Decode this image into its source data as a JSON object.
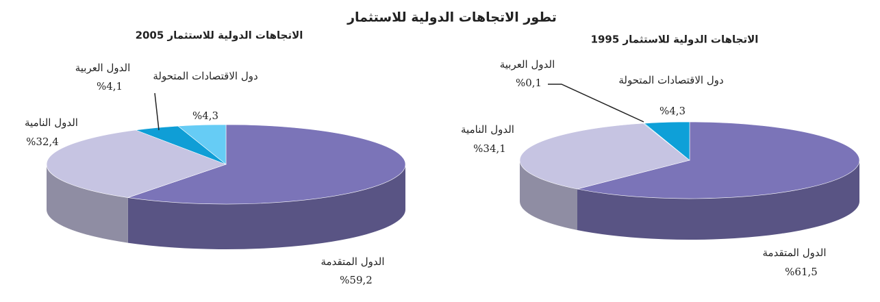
{
  "title": "تطور الاتجاهات الدولية للاستثمار",
  "chart_data": [
    {
      "type": "pie",
      "title": "الاتجاهات الدولية للاستثمار 2005",
      "categories": [
        "الدول المتقدمة",
        "الدول النامية",
        "الدول العربية",
        "دول الاقتصادات المتحولة"
      ],
      "values": [
        59.2,
        32.4,
        4.1,
        4.3
      ],
      "value_labels": [
        "%59,2",
        "%32,4",
        "%4,1",
        "%4,3"
      ],
      "colors": [
        "#7b74b8",
        "#c6c4e2",
        "#0f9ed6",
        "#66ccf5"
      ]
    },
    {
      "type": "pie",
      "title": "الاتجاهات الدولية للاستثمار 1995",
      "categories": [
        "الدول المتقدمة",
        "الدول النامية",
        "الدول العربية",
        "دول الاقتصادات المتحولة"
      ],
      "values": [
        61.5,
        34.1,
        0.1,
        4.3
      ],
      "value_labels": [
        "%61,5",
        "%34,1",
        "%0,1",
        "%4,3"
      ],
      "colors": [
        "#7b74b8",
        "#c6c4e2",
        "#0f9ed6",
        "#0ea0d8"
      ]
    }
  ]
}
